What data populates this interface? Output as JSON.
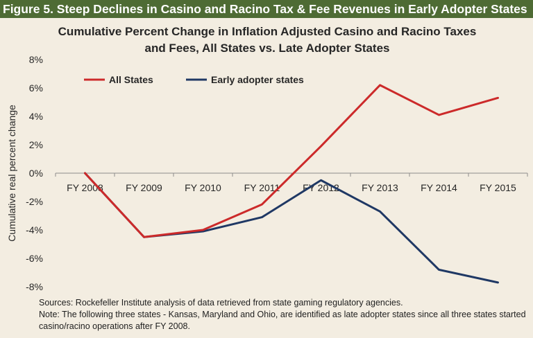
{
  "header": {
    "title": "Figure 5. Steep Declines in Casino and Racino Tax & Fee Revenues in Early Adopter States"
  },
  "chart_data": {
    "type": "line",
    "title_lines": [
      "Cumulative Percent Change in Inflation Adjusted Casino and Racino Taxes",
      "and Fees, All States vs. Late Adopter States"
    ],
    "ylabel": "Cumulative real percent change",
    "xlabel": "",
    "categories": [
      "FY 2008",
      "FY 2009",
      "FY 2010",
      "FY 2011",
      "FY 2012",
      "FY 2013",
      "FY 2014",
      "FY 2015"
    ],
    "y_ticks": [
      "8%",
      "6%",
      "4%",
      "2%",
      "0%",
      "-2%",
      "-4%",
      "-6%",
      "-8%"
    ],
    "ylim": [
      -8,
      8
    ],
    "grid": false,
    "legend_position": "top-left",
    "series": [
      {
        "name": "All States",
        "color": "#cc2a2a",
        "values": [
          0,
          -4.5,
          -4.0,
          -2.2,
          1.9,
          6.2,
          4.1,
          5.3
        ]
      },
      {
        "name": "Early adopter states",
        "color": "#1f3864",
        "values": [
          0,
          -4.5,
          -4.1,
          -3.1,
          -0.5,
          -2.7,
          -6.8,
          -7.7
        ]
      }
    ]
  },
  "notes": {
    "sources": "Sources: Rockefeller Institute analysis of data retrieved from state gaming regulatory agencies.",
    "note": "Note: The following three states - Kansas, Maryland and Ohio, are identified as late adopter states since all three states started casino/racino operations after FY 2008."
  },
  "colors": {
    "header_bg": "#4e6b34",
    "background": "#f3ede1",
    "axis": "#8c8c8c"
  }
}
